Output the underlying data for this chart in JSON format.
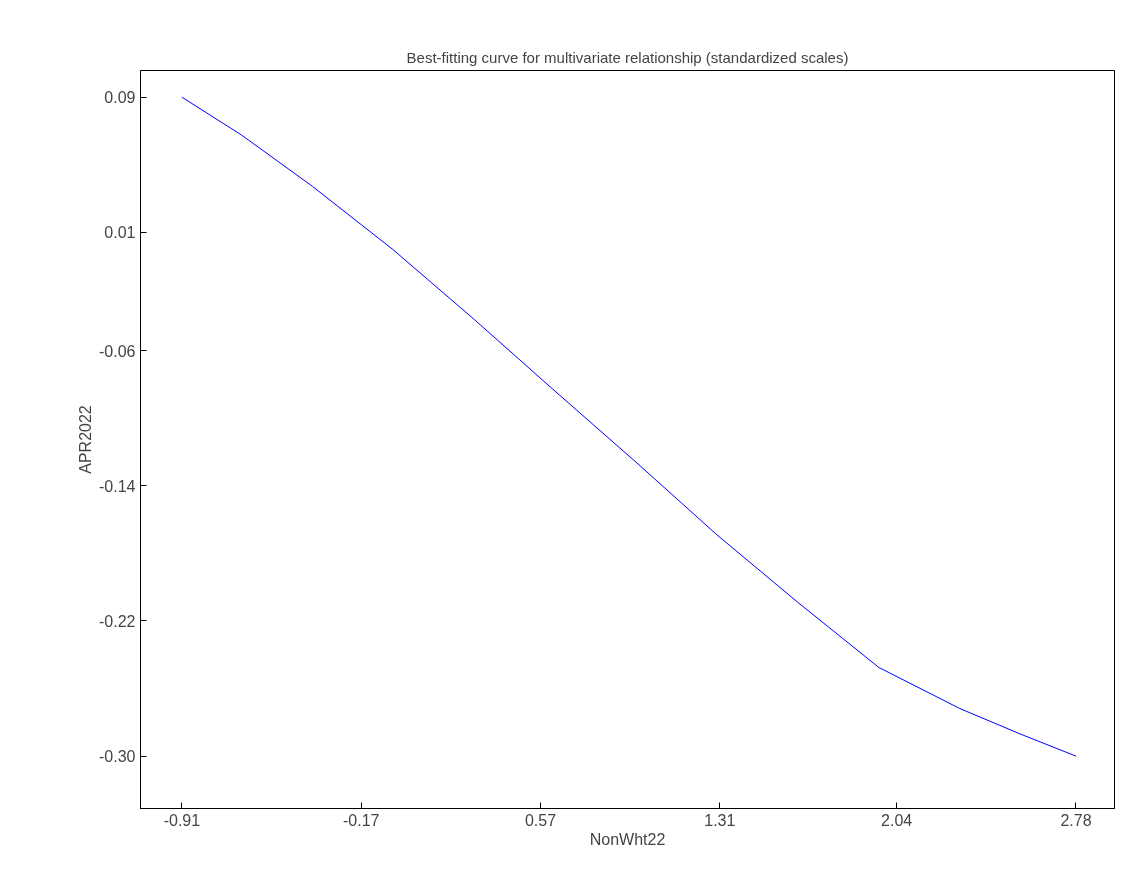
{
  "chart_data": {
    "type": "line",
    "title": "Best-fitting curve for multivariate relationship (standardized scales)",
    "xlabel": "NonWht22",
    "ylabel": "APR2022",
    "x": [
      -0.91,
      -0.664,
      -0.372,
      -0.038,
      0.296,
      0.63,
      0.964,
      1.298,
      1.632,
      1.966,
      2.3,
      2.55,
      2.78
    ],
    "series": [
      {
        "color": "#0000ff",
        "values": [
          0.09,
          0.0676,
          0.0373,
          -0.0003,
          -0.0415,
          -0.084,
          -0.126,
          -0.169,
          -0.209,
          -0.2475,
          -0.2718,
          -0.2869,
          -0.3
        ]
      }
    ],
    "xlim": [
      -1.081,
      2.939
    ],
    "ylim": [
      -0.331,
      0.1058
    ],
    "xticks": [
      {
        "value": -0.91,
        "label": "-0.91"
      },
      {
        "value": -0.17,
        "label": "-0.17"
      },
      {
        "value": 0.57,
        "label": "0.57"
      },
      {
        "value": 1.31,
        "label": "1.31"
      },
      {
        "value": 2.04,
        "label": "2.04"
      },
      {
        "value": 2.78,
        "label": "2.78"
      }
    ],
    "yticks": [
      {
        "value": 0.09,
        "label": "0.09"
      },
      {
        "value": 0.01,
        "label": "0.01"
      },
      {
        "value": -0.06,
        "label": "-0.06"
      },
      {
        "value": -0.14,
        "label": "-0.14"
      },
      {
        "value": -0.22,
        "label": "-0.22"
      },
      {
        "value": -0.3,
        "label": "-0.30"
      }
    ],
    "grid": false,
    "line_style": "solid"
  }
}
